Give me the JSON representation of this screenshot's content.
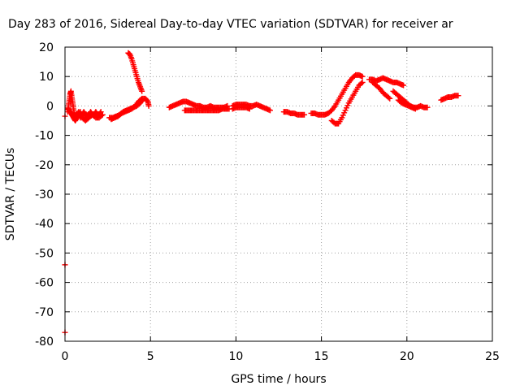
{
  "chart_data": {
    "type": "scatter",
    "title": "Day 283 of 2016, Sidereal Day-to-day VTEC variation (SDTVAR) for receiver ar",
    "xlabel": "GPS time / hours",
    "ylabel": "SDTVAR / TECUs",
    "xlim": [
      0,
      25
    ],
    "ylim": [
      -80,
      20
    ],
    "xticks": [
      "0",
      "5",
      "10",
      "15",
      "20",
      "25"
    ],
    "yticks": [
      "20",
      "10",
      "0",
      "-10",
      "-20",
      "-30",
      "-40",
      "-50",
      "-60",
      "-70",
      "-80"
    ],
    "grid": true,
    "marker": "+",
    "color": "#ff0000",
    "series": [
      {
        "segments": [
          [
            [
              0.0,
              -3.5
            ]
          ],
          [
            [
              0.0,
              -54
            ]
          ],
          [
            [
              0.0,
              -77
            ]
          ],
          [
            [
              0.15,
              -2
            ],
            [
              0.2,
              0
            ],
            [
              0.25,
              2
            ],
            [
              0.3,
              4
            ],
            [
              0.35,
              5
            ],
            [
              0.4,
              3
            ],
            [
              0.45,
              1
            ],
            [
              0.5,
              -1
            ],
            [
              0.55,
              -3
            ],
            [
              0.6,
              -4
            ],
            [
              0.7,
              -3
            ],
            [
              0.8,
              -2
            ],
            [
              0.9,
              -4
            ],
            [
              1.0,
              -3
            ],
            [
              1.1,
              -2
            ],
            [
              1.2,
              -3
            ],
            [
              1.3,
              -4
            ],
            [
              1.4,
              -3
            ],
            [
              1.5,
              -2
            ],
            [
              1.6,
              -3
            ],
            [
              1.7,
              -3
            ],
            [
              1.8,
              -2
            ],
            [
              1.9,
              -3
            ],
            [
              2.0,
              -3
            ],
            [
              2.1,
              -2
            ]
          ],
          [
            [
              0.2,
              -1
            ],
            [
              0.3,
              -2
            ],
            [
              0.4,
              -3
            ],
            [
              0.5,
              -4
            ],
            [
              0.6,
              -5
            ],
            [
              0.7,
              -4
            ],
            [
              0.8,
              -3
            ],
            [
              0.9,
              -2
            ],
            [
              1.0,
              -4
            ],
            [
              1.2,
              -5
            ],
            [
              1.4,
              -4
            ],
            [
              1.6,
              -3
            ],
            [
              1.8,
              -4
            ],
            [
              2.0,
              -4
            ],
            [
              2.2,
              -3
            ]
          ],
          [
            [
              2.6,
              -4
            ],
            [
              2.8,
              -4
            ],
            [
              3.0,
              -3.5
            ],
            [
              3.2,
              -3
            ],
            [
              3.4,
              -2
            ],
            [
              3.6,
              -1.5
            ],
            [
              3.8,
              -1
            ],
            [
              4.0,
              -0.5
            ],
            [
              4.2,
              0
            ],
            [
              4.4,
              1
            ],
            [
              4.5,
              2
            ]
          ],
          [
            [
              2.7,
              -4.5
            ],
            [
              2.9,
              -4
            ],
            [
              3.1,
              -3.5
            ],
            [
              3.3,
              -2.5
            ],
            [
              3.5,
              -2
            ],
            [
              3.7,
              -1.5
            ],
            [
              3.9,
              -1
            ],
            [
              4.1,
              0
            ],
            [
              4.3,
              1.5
            ],
            [
              4.5,
              2.5
            ],
            [
              4.7,
              2.5
            ],
            [
              4.85,
              1.5
            ],
            [
              4.9,
              0
            ]
          ],
          [
            [
              3.7,
              18
            ],
            [
              3.8,
              17.5
            ],
            [
              3.9,
              16
            ],
            [
              4.0,
              14
            ],
            [
              4.1,
              12
            ],
            [
              4.2,
              10
            ],
            [
              4.3,
              8
            ],
            [
              4.4,
              6.5
            ],
            [
              4.5,
              5
            ]
          ],
          [
            [
              6.1,
              -0.5
            ],
            [
              6.3,
              0
            ],
            [
              6.5,
              0.5
            ],
            [
              6.7,
              1
            ],
            [
              6.9,
              1.5
            ],
            [
              7.1,
              1.5
            ],
            [
              7.3,
              1
            ],
            [
              7.5,
              0.5
            ],
            [
              7.7,
              0
            ],
            [
              7.9,
              0
            ],
            [
              8.1,
              -0.5
            ],
            [
              8.3,
              -0.5
            ],
            [
              8.5,
              0
            ],
            [
              8.7,
              -0.5
            ],
            [
              8.9,
              -0.5
            ],
            [
              9.1,
              -0.5
            ],
            [
              9.3,
              -0.5
            ],
            [
              9.5,
              0
            ]
          ],
          [
            [
              7.0,
              -1.5
            ],
            [
              7.2,
              -1.5
            ],
            [
              7.4,
              -1.5
            ],
            [
              7.6,
              -1.5
            ],
            [
              7.8,
              -1.5
            ],
            [
              8.0,
              -1.5
            ],
            [
              8.2,
              -1.5
            ],
            [
              8.4,
              -1.5
            ],
            [
              8.6,
              -1.5
            ],
            [
              8.8,
              -1.5
            ],
            [
              9.0,
              -1.5
            ],
            [
              9.2,
              -1
            ],
            [
              9.4,
              -1
            ],
            [
              9.6,
              -1
            ]
          ],
          [
            [
              9.8,
              0
            ],
            [
              10.0,
              0.5
            ],
            [
              10.2,
              0.5
            ],
            [
              10.4,
              0.5
            ],
            [
              10.6,
              0.5
            ],
            [
              10.8,
              0
            ],
            [
              11.0,
              0
            ],
            [
              11.2,
              0.5
            ],
            [
              11.4,
              0
            ],
            [
              11.6,
              -0.5
            ],
            [
              11.8,
              -1
            ],
            [
              12.0,
              -1.5
            ]
          ],
          [
            [
              9.8,
              -1
            ],
            [
              10.0,
              -0.5
            ],
            [
              10.2,
              -0.5
            ],
            [
              10.4,
              -0.5
            ],
            [
              10.6,
              -0.5
            ],
            [
              10.8,
              -1
            ]
          ],
          [
            [
              12.8,
              -2
            ],
            [
              13.0,
              -2
            ],
            [
              13.2,
              -2.5
            ],
            [
              13.4,
              -2.5
            ],
            [
              13.6,
              -3
            ],
            [
              13.8,
              -3
            ],
            [
              14.0,
              -3
            ]
          ],
          [
            [
              14.4,
              -2.5
            ],
            [
              14.6,
              -2.5
            ],
            [
              14.8,
              -3
            ],
            [
              15.0,
              -3
            ],
            [
              15.2,
              -3
            ],
            [
              15.4,
              -2.5
            ],
            [
              15.6,
              -1.5
            ],
            [
              15.8,
              0
            ],
            [
              16.0,
              2
            ],
            [
              16.2,
              4
            ],
            [
              16.4,
              6
            ],
            [
              16.6,
              8
            ],
            [
              16.8,
              9.5
            ],
            [
              17.0,
              10.5
            ],
            [
              17.2,
              10.5
            ],
            [
              17.4,
              10
            ]
          ],
          [
            [
              15.6,
              -5
            ],
            [
              15.8,
              -6
            ],
            [
              16.0,
              -6
            ],
            [
              16.2,
              -4
            ],
            [
              16.4,
              -1.5
            ],
            [
              16.6,
              1
            ],
            [
              16.8,
              3
            ],
            [
              17.0,
              5
            ],
            [
              17.2,
              7
            ],
            [
              17.4,
              8
            ]
          ],
          [
            [
              17.8,
              9
            ],
            [
              18.0,
              9
            ],
            [
              18.2,
              8.5
            ],
            [
              18.4,
              9
            ],
            [
              18.6,
              9.5
            ],
            [
              18.8,
              9
            ],
            [
              19.0,
              8.5
            ],
            [
              19.2,
              8
            ],
            [
              19.4,
              8
            ],
            [
              19.6,
              7.5
            ],
            [
              19.8,
              7
            ]
          ],
          [
            [
              18.0,
              8
            ],
            [
              18.2,
              7
            ],
            [
              18.4,
              6
            ],
            [
              18.6,
              4.5
            ],
            [
              18.8,
              3.5
            ],
            [
              19.0,
              2.5
            ]
          ],
          [
            [
              19.2,
              5
            ],
            [
              19.4,
              4
            ],
            [
              19.6,
              3
            ],
            [
              19.8,
              2
            ],
            [
              20.0,
              1
            ],
            [
              20.2,
              0
            ],
            [
              20.4,
              -0.5
            ],
            [
              20.6,
              -0.5
            ],
            [
              20.8,
              0
            ],
            [
              21.0,
              -0.5
            ],
            [
              21.2,
              -0.5
            ]
          ],
          [
            [
              19.5,
              2
            ],
            [
              19.7,
              1
            ],
            [
              19.9,
              0.5
            ],
            [
              20.1,
              0
            ],
            [
              20.3,
              -0.5
            ],
            [
              20.5,
              -1
            ]
          ],
          [
            [
              22.0,
              2
            ],
            [
              22.2,
              2.5
            ],
            [
              22.4,
              3
            ],
            [
              22.6,
              3
            ],
            [
              22.8,
              3.5
            ],
            [
              23.0,
              3.5
            ]
          ]
        ]
      }
    ]
  }
}
